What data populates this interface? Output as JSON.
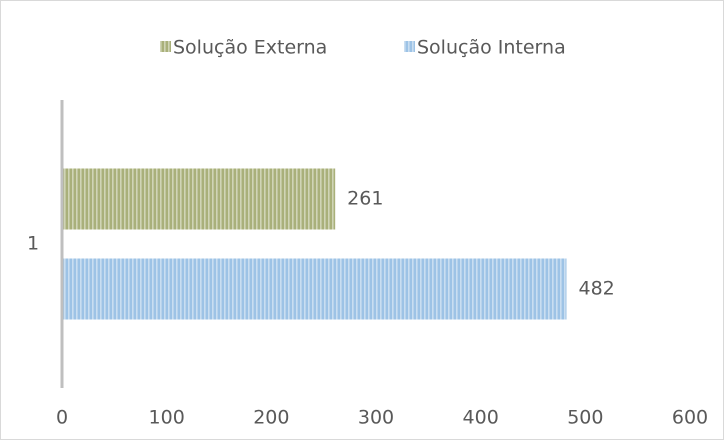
{
  "chart_data": {
    "type": "barh",
    "categories": [
      "1"
    ],
    "series": [
      {
        "name": "Solução Externa",
        "color": "#a9b07a",
        "values": [
          261
        ]
      },
      {
        "name": "Solução Interna",
        "color": "#9dc3e6",
        "values": [
          482
        ]
      }
    ],
    "xlim": [
      0,
      600
    ],
    "xticks": [
      0,
      100,
      200,
      300,
      400,
      500,
      600
    ],
    "grid": false,
    "legend": "top"
  }
}
